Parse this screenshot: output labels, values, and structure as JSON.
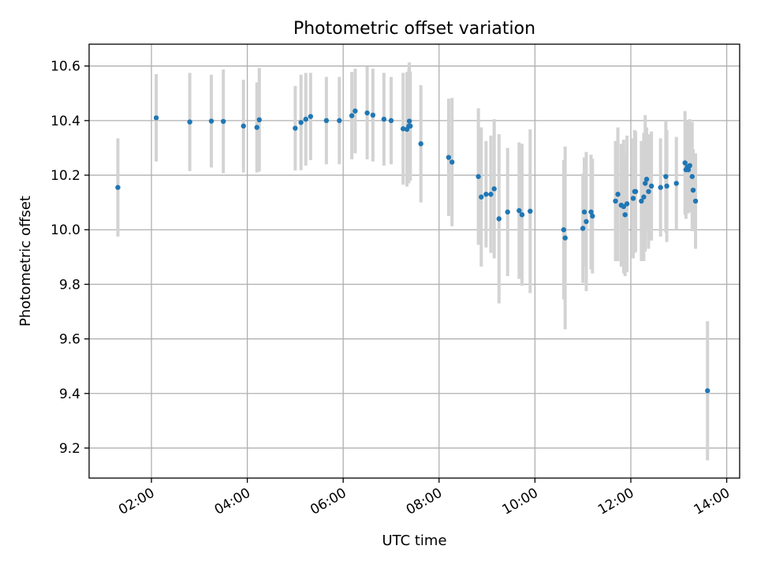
{
  "chart_data": {
    "type": "scatter",
    "title": "Photometric offset variation",
    "xlabel": "UTC time",
    "ylabel": "Photometric offset",
    "x_tick_labels": [
      "02:00",
      "04:00",
      "06:00",
      "08:00",
      "10:00",
      "12:00",
      "14:00"
    ],
    "x_tick_hours": [
      2,
      4,
      6,
      8,
      10,
      12,
      14
    ],
    "y_tick_labels": [
      "9.2",
      "9.4",
      "9.6",
      "9.8",
      "10.0",
      "10.2",
      "10.4",
      "10.6"
    ],
    "y_ticks": [
      9.2,
      9.4,
      9.6,
      9.8,
      10.0,
      10.2,
      10.4,
      10.6
    ],
    "xlim_hours": [
      0.7,
      14.27
    ],
    "ylim": [
      9.09,
      10.68
    ],
    "grid": true,
    "colors": {
      "points": "#1f77b4",
      "errorbars": "#d3d3d3"
    },
    "series": [
      {
        "x_hours": [
          1.3,
          2.1,
          2.8,
          3.25,
          3.5,
          3.92,
          4.2,
          4.25,
          5.0,
          5.12,
          5.22,
          5.32,
          5.65,
          5.92,
          6.18,
          6.25,
          6.5,
          6.62,
          6.85,
          7.0,
          7.25,
          7.33,
          7.37,
          7.38,
          7.4,
          7.62,
          8.2,
          8.27,
          8.82,
          8.88,
          8.98,
          9.08,
          9.15,
          9.25,
          9.43,
          9.67,
          9.73,
          9.9,
          10.6,
          10.63,
          11.0,
          11.03,
          11.07,
          11.17,
          11.2,
          11.68,
          11.73,
          11.8,
          11.85,
          11.88,
          11.92,
          12.05,
          12.08,
          12.1,
          12.22,
          12.27,
          12.3,
          12.33,
          12.37,
          12.43,
          12.62,
          12.73,
          12.75,
          12.95,
          13.13,
          13.15,
          13.18,
          13.2,
          13.23,
          13.28,
          13.3,
          13.35,
          13.6
        ],
        "y": [
          10.155,
          10.41,
          10.395,
          10.398,
          10.397,
          10.38,
          10.375,
          10.403,
          10.372,
          10.393,
          10.405,
          10.415,
          10.4,
          10.4,
          10.418,
          10.435,
          10.428,
          10.42,
          10.405,
          10.4,
          10.37,
          10.368,
          10.38,
          10.398,
          10.38,
          10.315,
          10.265,
          10.248,
          10.195,
          10.12,
          10.13,
          10.13,
          10.15,
          10.04,
          10.065,
          10.07,
          10.055,
          10.068,
          10.0,
          9.97,
          10.005,
          10.065,
          10.03,
          10.065,
          10.05,
          10.105,
          10.13,
          10.09,
          10.085,
          10.055,
          10.095,
          10.115,
          10.14,
          10.14,
          10.105,
          10.12,
          10.17,
          10.185,
          10.14,
          10.16,
          10.155,
          10.195,
          10.16,
          10.17,
          10.245,
          10.22,
          10.23,
          10.22,
          10.235,
          10.195,
          10.145,
          10.105,
          9.41
        ],
        "err": [
          0.18,
          0.16,
          0.18,
          0.17,
          0.19,
          0.17,
          0.165,
          0.19,
          0.155,
          0.175,
          0.17,
          0.16,
          0.16,
          0.16,
          0.16,
          0.155,
          0.17,
          0.17,
          0.17,
          0.16,
          0.205,
          0.21,
          0.21,
          0.215,
          0.2,
          0.215,
          0.215,
          0.235,
          0.25,
          0.255,
          0.195,
          0.215,
          0.255,
          0.31,
          0.235,
          0.25,
          0.26,
          0.3,
          0.255,
          0.335,
          0.2,
          0.2,
          0.255,
          0.21,
          0.21,
          0.22,
          0.245,
          0.225,
          0.245,
          0.225,
          0.25,
          0.22,
          0.225,
          0.22,
          0.22,
          0.235,
          0.25,
          0.19,
          0.21,
          0.2,
          0.18,
          0.205,
          0.205,
          0.17,
          0.19,
          0.18,
          0.17,
          0.16,
          0.17,
          0.2,
          0.15,
          0.175,
          0.255
        ]
      }
    ]
  }
}
